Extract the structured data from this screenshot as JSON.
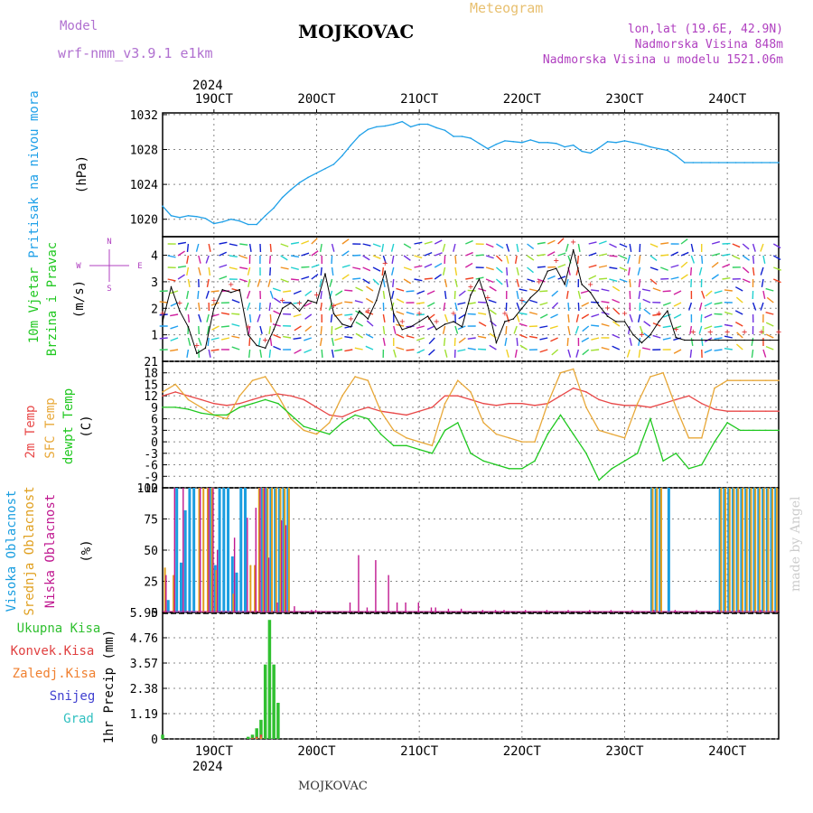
{
  "header": {
    "model_label": "Model",
    "model_value": "wrf-nmm_v3.9.1 e1km",
    "station": "MOJKOVAC",
    "product": "Meteogram",
    "lonlat": "lon,lat (19.6E, 42.9N)",
    "elevation": "Nadmorska Visina 848m",
    "model_elevation": "Nadmorska Visina u modelu 1521.06m",
    "year": "2024",
    "footer_station": "MOJKOVAC",
    "watermark": "made by Angel"
  },
  "colors": {
    "pressure": "#1fa0e8",
    "temp2m": "#e84848",
    "sfc": "#e8a838",
    "dew": "#20c820",
    "high_cloud": "#1a9ee0",
    "mid_cloud": "#e0a020",
    "low_cloud": "#c01890",
    "total_precip": "#30c030",
    "conv_precip": "#e04040",
    "frz_precip": "#f08030",
    "snow": "#4040d0",
    "hail": "#30c0c0",
    "grid": "#888888"
  },
  "days": [
    "19OCT",
    "20OCT",
    "21OCT",
    "22OCT",
    "23OCT",
    "24OCT"
  ],
  "panels": {
    "pressure": {
      "labels": [
        "Pritisak na nivou mora",
        "(hPa)"
      ],
      "ticks": [
        "1020",
        "1024",
        "1028",
        "1032"
      ]
    },
    "wind": {
      "labels": [
        "10m Vjetar",
        "Brzina i Pravac",
        "(m/s)"
      ],
      "ticks": [
        "1",
        "2",
        "3",
        "4"
      ],
      "compass": [
        "N",
        "S",
        "W",
        "E"
      ]
    },
    "temp": {
      "labels": [
        "2m Temp",
        "SFC Temp",
        "dewpt Temp",
        "(C)"
      ],
      "ticks": [
        "-12",
        "-9",
        "-6",
        "-3",
        "0",
        "3",
        "6",
        "9",
        "12",
        "15",
        "18",
        "21"
      ]
    },
    "cloud": {
      "labels": [
        "Visoka Oblacnost",
        "Srednja Oblacnost",
        "Niska Oblacnost",
        "(%)"
      ],
      "ticks": [
        "0",
        "25",
        "50",
        "75",
        "100"
      ]
    },
    "precip": {
      "labels": [
        "1hr Precip (mm)"
      ],
      "legend": [
        "Ukupna Kisa",
        "Konvek.Kisa",
        "Zaledj.Kisa",
        "Snijeg",
        "Grad"
      ],
      "ticks": [
        "0",
        "1.19",
        "2.38",
        "3.57",
        "4.76",
        "5.95"
      ]
    }
  },
  "chart_data": [
    {
      "type": "line",
      "ylabel": "(hPa)",
      "ylim": [
        1018,
        1032.2
      ],
      "x_unit": "hours from 18 Oct 2024 12 UTC",
      "series": [
        {
          "x": [
            0,
            2,
            4,
            6,
            8,
            10,
            12,
            14,
            16,
            18,
            20,
            22,
            24,
            26,
            28,
            30,
            32,
            34,
            36,
            38,
            40,
            42,
            44,
            46,
            48,
            50,
            52,
            54,
            56,
            58,
            60,
            62,
            64,
            66,
            68,
            70,
            72,
            74,
            76,
            78,
            80,
            82,
            84,
            86,
            88,
            90,
            92,
            94,
            96,
            98,
            100,
            102,
            104,
            106,
            108,
            110,
            112,
            114,
            116,
            118,
            120,
            122,
            124,
            126,
            128,
            130,
            132,
            134,
            136,
            138,
            140,
            142,
            144
          ],
          "values": [
            1021.5,
            1020.4,
            1020.2,
            1020.4,
            1020.3,
            1020.1,
            1019.5,
            1019.7,
            1020.0,
            1019.8,
            1019.4,
            1019.4,
            1020.4,
            1021.3,
            1022.5,
            1023.4,
            1024.2,
            1024.8,
            1025.3,
            1025.8,
            1026.3,
            1027.3,
            1028.5,
            1029.6,
            1030.3,
            1030.6,
            1030.7,
            1030.9,
            1031.2,
            1030.6,
            1030.9,
            1030.9,
            1030.5,
            1030.2,
            1029.5,
            1029.5,
            1029.3,
            1028.7,
            1028.1,
            1028.6,
            1029.0,
            1028.9,
            1028.8,
            1029.1,
            1028.8,
            1028.8,
            1028.7,
            1028.3,
            1028.5,
            1027.8,
            1027.6,
            1028.2,
            1028.9,
            1028.8,
            1029.0,
            1028.8,
            1028.6,
            1028.3,
            1028.1,
            1027.9,
            1027.3,
            1026.5,
            1026.5,
            1026.5,
            1026.5,
            1026.5,
            1026.5,
            1026.5,
            1026.5,
            1026.5,
            1026.5,
            1026.5,
            1026.5
          ]
        }
      ]
    },
    {
      "type": "line",
      "ylabel": "(m/s)",
      "ylim": [
        0,
        4.7
      ],
      "x_unit": "hours from 18 Oct 2024 12 UTC",
      "series": [
        {
          "x": [
            0,
            2,
            4,
            6,
            8,
            10,
            12,
            14,
            16,
            18,
            20,
            22,
            24,
            26,
            28,
            30,
            32,
            34,
            36,
            38,
            40,
            42,
            44,
            46,
            48,
            50,
            52,
            54,
            56,
            58,
            60,
            62,
            64,
            66,
            68,
            70,
            72,
            74,
            76,
            78,
            80,
            82,
            84,
            86,
            88,
            90,
            92,
            94,
            96,
            98,
            100,
            102,
            104,
            106,
            108,
            110,
            112,
            114,
            116,
            118,
            120,
            122,
            124,
            126,
            128,
            130,
            132,
            134,
            136,
            138,
            140,
            142,
            144
          ],
          "values": [
            1.5,
            2.8,
            1.9,
            1.3,
            0.3,
            0.5,
            2.0,
            2.7,
            2.6,
            2.7,
            1.0,
            0.6,
            0.5,
            1.2,
            2.0,
            2.2,
            1.9,
            2.3,
            2.2,
            3.3,
            1.8,
            1.4,
            1.3,
            1.9,
            1.6,
            2.3,
            3.4,
            1.8,
            1.2,
            1.3,
            1.5,
            1.7,
            1.2,
            1.4,
            1.5,
            1.3,
            2.5,
            3.1,
            2.1,
            0.7,
            1.5,
            1.6,
            2.0,
            2.4,
            2.7,
            3.4,
            3.5,
            2.9,
            4.2,
            2.9,
            2.6,
            2.1,
            1.7,
            1.5,
            1.5,
            1.0,
            0.7,
            1.0,
            1.5,
            1.9,
            0.9,
            0.8,
            0.8,
            0.8,
            0.8,
            0.8,
            0.8,
            0.8,
            0.8,
            0.8,
            0.8,
            0.8,
            0.8
          ]
        }
      ]
    },
    {
      "type": "line",
      "ylabel": "(C)",
      "ylim": [
        -12,
        21
      ],
      "x_unit": "hours from 18 Oct 2024 12 UTC",
      "series": [
        {
          "x": [
            0,
            3,
            6,
            9,
            12,
            15,
            18,
            21,
            24,
            27,
            30,
            33,
            36,
            39,
            42,
            45,
            48,
            51,
            54,
            57,
            60,
            63,
            66,
            69,
            72,
            75,
            78,
            81,
            84,
            87,
            90,
            93,
            96,
            99,
            102,
            105,
            108,
            111,
            114,
            117,
            120,
            123,
            126,
            129,
            132,
            135,
            138,
            141,
            144
          ],
          "values": [
            12,
            13,
            12,
            11,
            10,
            9.5,
            10,
            11,
            12,
            12.5,
            12,
            11,
            9,
            7,
            6.5,
            8,
            9,
            8,
            7.5,
            7,
            8,
            9,
            12,
            12,
            11,
            10,
            9.5,
            10,
            10,
            9.5,
            10,
            12,
            14,
            13,
            11,
            10,
            9.5,
            9.5,
            9,
            10,
            11,
            12,
            10,
            8.5,
            8,
            8,
            8,
            8,
            8
          ],
          "name": "2m Temp"
        },
        {
          "x": [
            0,
            3,
            6,
            9,
            12,
            15,
            18,
            21,
            24,
            27,
            30,
            33,
            36,
            39,
            42,
            45,
            48,
            51,
            54,
            57,
            60,
            63,
            66,
            69,
            72,
            75,
            78,
            81,
            84,
            87,
            90,
            93,
            96,
            99,
            102,
            105,
            108,
            111,
            114,
            117,
            120,
            123,
            126,
            129,
            132,
            135,
            138,
            141,
            144
          ],
          "values": [
            13,
            15,
            11,
            9,
            7,
            6,
            12,
            16,
            17,
            12,
            6,
            3,
            2,
            5,
            12,
            17,
            16,
            8,
            3,
            1,
            0,
            -1,
            10,
            16,
            13,
            5,
            2,
            1,
            0,
            0,
            10,
            18,
            19,
            9,
            3,
            2,
            1,
            10,
            17,
            18,
            9,
            1,
            1,
            14,
            16,
            16,
            16,
            16,
            16
          ],
          "name": "SFC Temp"
        },
        {
          "x": [
            0,
            3,
            6,
            9,
            12,
            15,
            18,
            21,
            24,
            27,
            30,
            33,
            36,
            39,
            42,
            45,
            48,
            51,
            54,
            57,
            60,
            63,
            66,
            69,
            72,
            75,
            78,
            81,
            84,
            87,
            90,
            93,
            96,
            99,
            102,
            105,
            108,
            111,
            114,
            117,
            120,
            123,
            126,
            129,
            132,
            135,
            138,
            141,
            144
          ],
          "values": [
            9,
            9,
            8.5,
            7.5,
            7,
            7,
            9,
            10,
            11,
            10,
            7,
            4,
            3,
            2,
            5,
            7,
            6,
            2,
            -1,
            -1,
            -2,
            -3,
            3,
            5,
            -3,
            -5,
            -6,
            -7,
            -7,
            -5,
            2,
            7,
            2,
            -3,
            -10,
            -7,
            -5,
            -3,
            6,
            -5,
            -3,
            -7,
            -6,
            0,
            5,
            3,
            3,
            3,
            3
          ],
          "name": "dewpt Temp"
        }
      ]
    },
    {
      "type": "bar",
      "ylabel": "(%)",
      "ylim": [
        0,
        100
      ],
      "x_unit": "hours from 18 Oct 2024 12 UTC",
      "series": [
        {
          "name": "Visoka Oblacnost",
          "x": [
            1,
            3,
            4,
            5,
            6,
            7,
            11,
            12,
            13,
            14,
            15,
            16,
            17,
            18,
            19,
            23,
            24,
            25,
            26,
            27,
            28,
            29,
            114,
            115,
            116,
            118,
            130,
            131,
            132,
            133,
            134,
            135,
            136,
            137,
            138,
            139,
            140,
            141,
            142,
            143
          ],
          "values": [
            10,
            100,
            40,
            82,
            100,
            100,
            100,
            38,
            100,
            100,
            100,
            45,
            32,
            100,
            100,
            100,
            100,
            100,
            100,
            100,
            100,
            100,
            100,
            100,
            100,
            100,
            100,
            100,
            100,
            100,
            100,
            100,
            100,
            100,
            100,
            100,
            100,
            100,
            100,
            100
          ]
        },
        {
          "name": "Srednja Oblacnost",
          "x": [
            0,
            2,
            8,
            9,
            10,
            11,
            12,
            16,
            20,
            21,
            22,
            23,
            24,
            25,
            26,
            27,
            28,
            29,
            114,
            115,
            116,
            130,
            131,
            132,
            133,
            134,
            135,
            136,
            137,
            138,
            139,
            140,
            141,
            142,
            143
          ],
          "values": [
            36,
            30,
            100,
            100,
            100,
            100,
            34,
            15,
            38,
            38,
            100,
            100,
            100,
            100,
            100,
            100,
            100,
            100,
            100,
            100,
            100,
            100,
            100,
            100,
            100,
            100,
            100,
            100,
            100,
            100,
            100,
            100,
            100,
            100,
            100
          ]
        },
        {
          "name": "Niska Oblacnost",
          "x": [
            1,
            3,
            5,
            9,
            11,
            12,
            13,
            17,
            20,
            22,
            23,
            24,
            25,
            27,
            28,
            29,
            31,
            35,
            36,
            44,
            46,
            48,
            50,
            53,
            55,
            57,
            60,
            63,
            64,
            67,
            70,
            75,
            78,
            80,
            85,
            90,
            95,
            100,
            105,
            110,
            115,
            120,
            125,
            130,
            135,
            140
          ],
          "values": [
            30,
            100,
            100,
            100,
            100,
            100,
            50,
            60,
            76,
            84,
            100,
            100,
            44,
            8,
            74,
            70,
            5,
            2,
            2,
            8,
            46,
            4,
            42,
            30,
            8,
            8,
            8,
            4,
            4,
            3,
            3,
            2,
            2,
            2,
            2,
            2,
            2,
            2,
            2,
            2,
            2,
            2,
            2,
            2,
            2,
            2
          ]
        }
      ]
    },
    {
      "type": "bar",
      "ylabel": "1hr Precip (mm)",
      "ylim": [
        0,
        5.95
      ],
      "x_unit": "hours from 18 Oct 2024 12 UTC",
      "series": [
        {
          "name": "Ukupna Kisa",
          "x": [
            0,
            20,
            21,
            22,
            23,
            24,
            25,
            26,
            27
          ],
          "values": [
            0.2,
            0.1,
            0.2,
            0.5,
            0.9,
            3.5,
            5.6,
            3.5,
            1.7
          ]
        },
        {
          "name": "Konvek.Kisa",
          "x": [
            21,
            22,
            23
          ],
          "values": [
            0.05,
            0.1,
            0.2
          ]
        },
        {
          "name": "Zaledj.Kisa",
          "x": [
            22,
            23
          ],
          "values": [
            0.05,
            0.1
          ]
        }
      ]
    }
  ]
}
